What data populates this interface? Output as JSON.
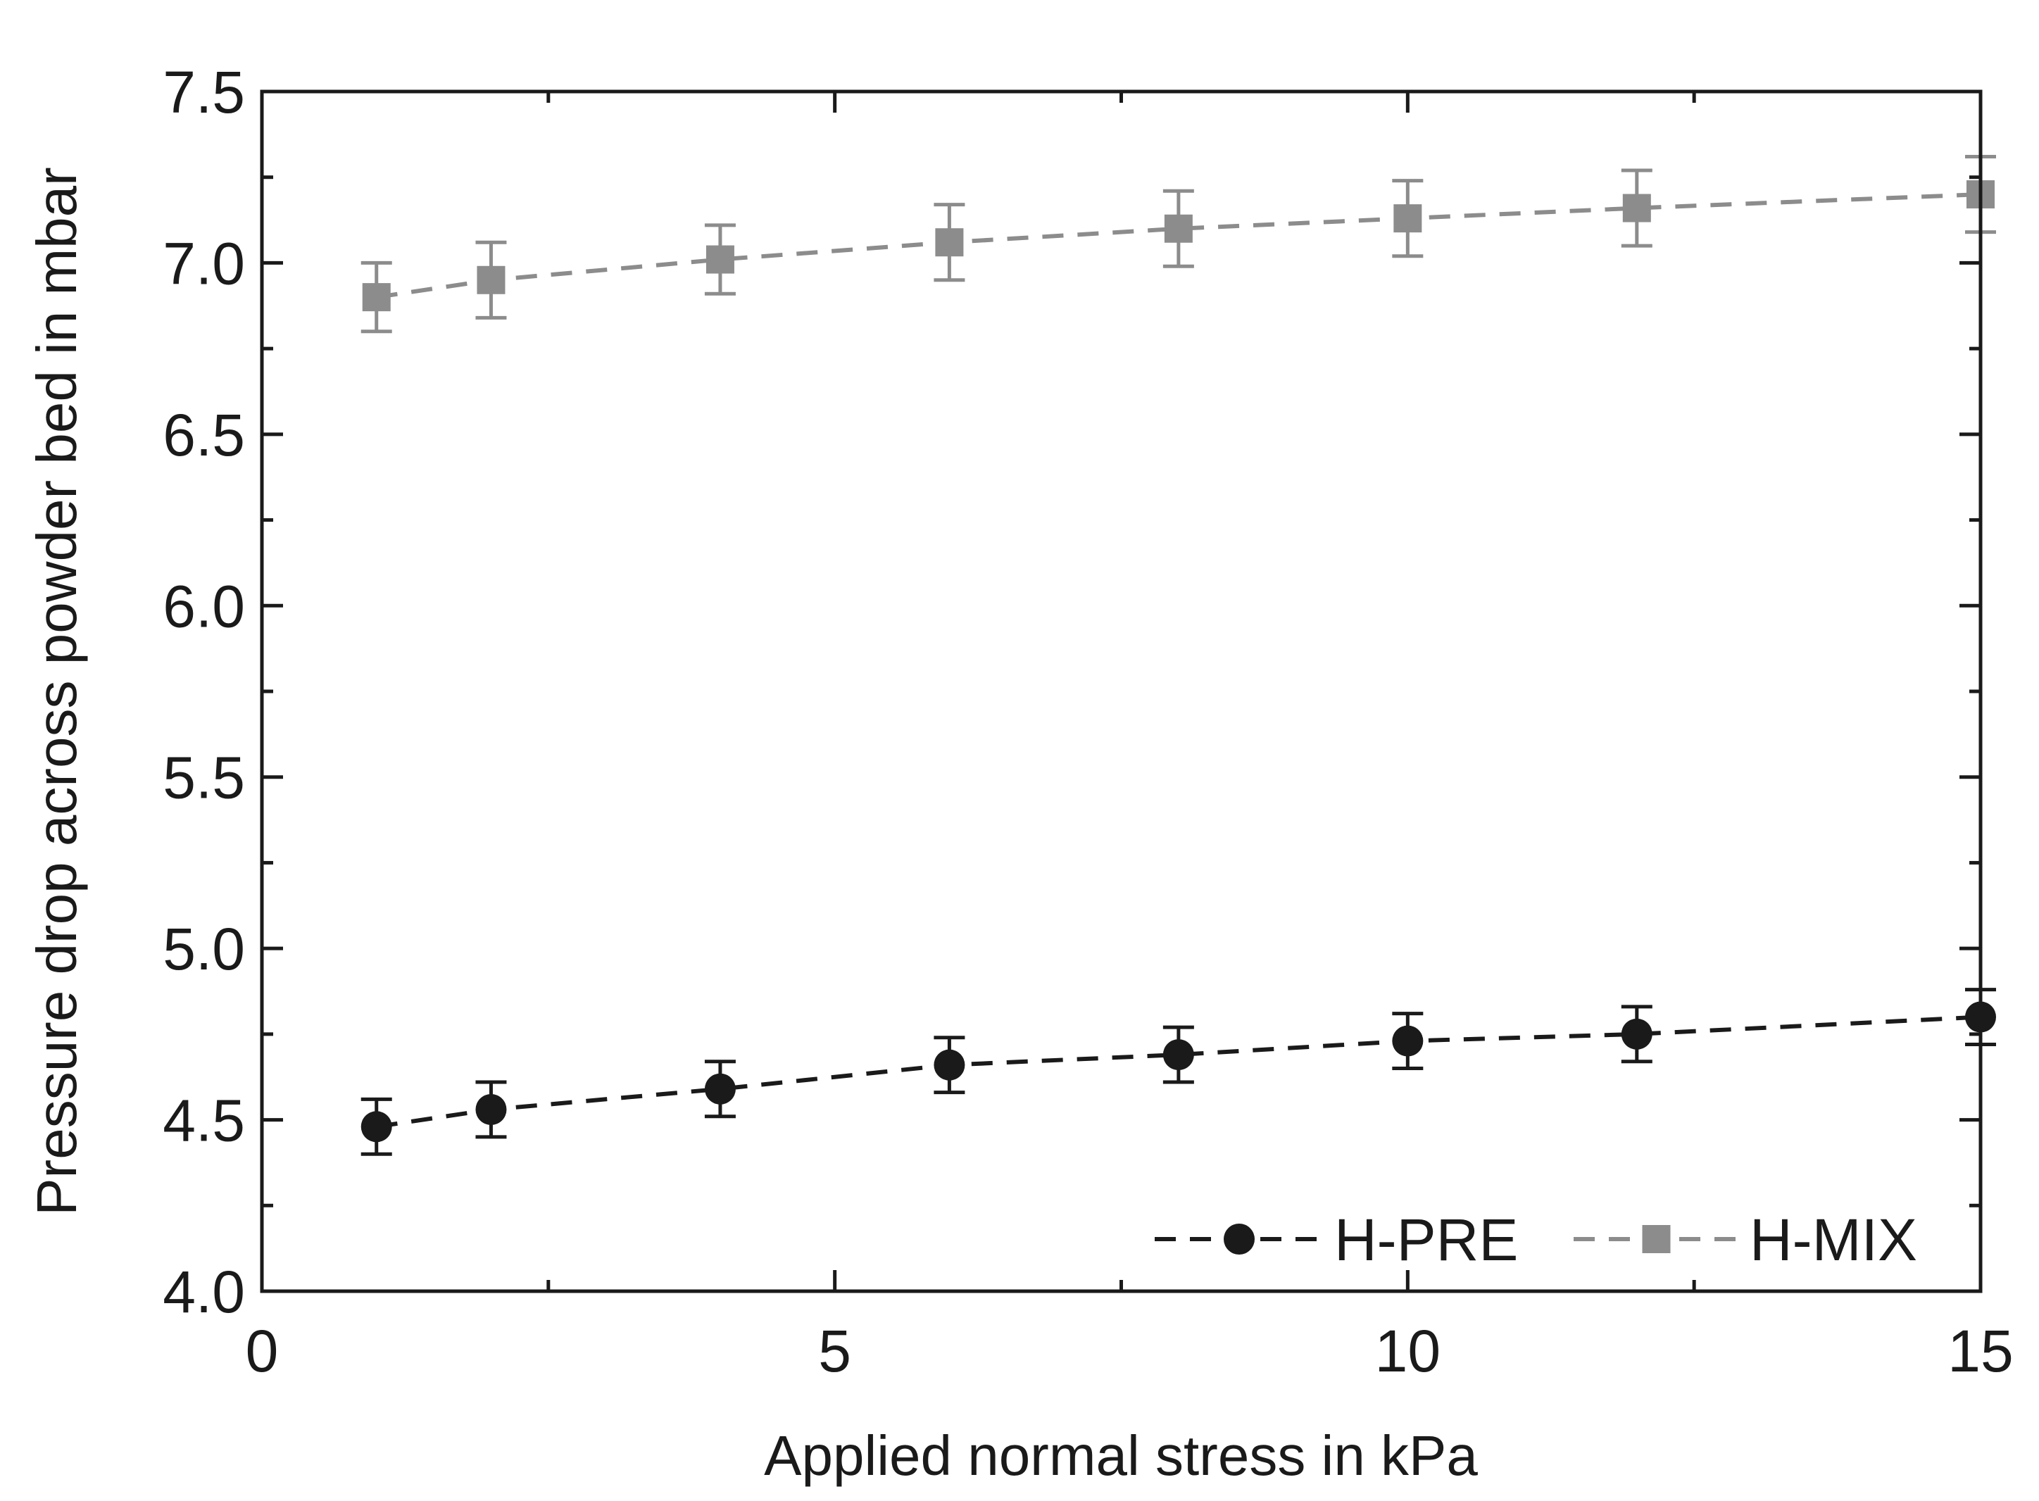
{
  "chart_data": {
    "type": "scatter",
    "title": "",
    "xlabel": "Applied normal stress in kPa",
    "ylabel": "Pressure drop across powder bed in mbar",
    "xlim": [
      0,
      15
    ],
    "ylim": [
      4.0,
      7.5
    ],
    "x_ticks": [
      0,
      5,
      10,
      15
    ],
    "x_tick_labels": [
      "0",
      "5",
      "10",
      "15"
    ],
    "x_minor_ticks": [
      2.5,
      7.5,
      12.5
    ],
    "y_ticks": [
      4.0,
      4.5,
      5.0,
      5.5,
      6.0,
      6.5,
      7.0,
      7.5
    ],
    "y_tick_labels": [
      "4.0",
      "4.5",
      "5.0",
      "5.5",
      "6.0",
      "6.5",
      "7.0",
      "7.5"
    ],
    "y_minor_ticks": [
      4.25,
      4.75,
      5.25,
      5.75,
      6.25,
      6.75,
      7.25
    ],
    "grid": false,
    "legend_position": "bottom-right",
    "series": [
      {
        "name": "H-PRE",
        "marker": "circle",
        "line_style": "dashed",
        "color": "#1a1a1a",
        "x": [
          1,
          2,
          4,
          6,
          8,
          10,
          12,
          15
        ],
        "y": [
          4.48,
          4.53,
          4.59,
          4.66,
          4.69,
          4.73,
          4.75,
          4.8
        ],
        "error": [
          0.08,
          0.08,
          0.08,
          0.08,
          0.08,
          0.08,
          0.08,
          0.08
        ]
      },
      {
        "name": "H-MIX",
        "marker": "square",
        "line_style": "dashed",
        "color": "#8c8c8c",
        "x": [
          1,
          2,
          4,
          6,
          8,
          10,
          12,
          15
        ],
        "y": [
          6.9,
          6.95,
          7.01,
          7.06,
          7.1,
          7.13,
          7.16,
          7.2
        ],
        "error": [
          0.1,
          0.11,
          0.1,
          0.11,
          0.11,
          0.11,
          0.11,
          0.11
        ]
      }
    ]
  }
}
